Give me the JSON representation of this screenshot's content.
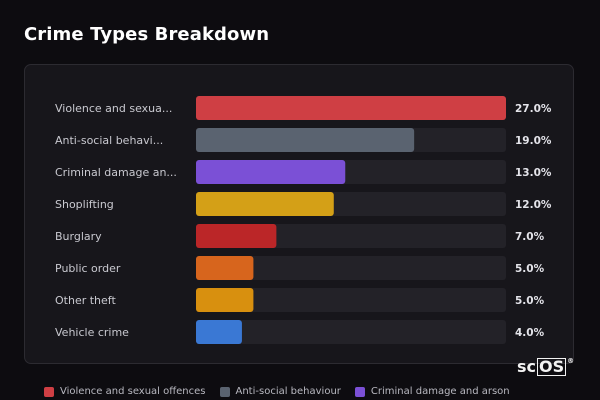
{
  "title": "Crime Types Breakdown",
  "logo": {
    "text": "sc",
    "boxed": "OS",
    "mark": "®"
  },
  "chart_data": {
    "type": "bar",
    "orientation": "horizontal",
    "max_value": 27.0,
    "categories": [
      {
        "label": "Violence and sexua...",
        "value": 27.0,
        "value_label": "27.0%",
        "color": "#cf3f44"
      },
      {
        "label": "Anti-social behavi...",
        "value": 19.0,
        "value_label": "19.0%",
        "color": "#5a6370"
      },
      {
        "label": "Criminal damage an...",
        "value": 13.0,
        "value_label": "13.0%",
        "color": "#7b50d6"
      },
      {
        "label": "Shoplifting",
        "value": 12.0,
        "value_label": "12.0%",
        "color": "#d4a017"
      },
      {
        "label": "Burglary",
        "value": 7.0,
        "value_label": "7.0%",
        "color": "#bb2628"
      },
      {
        "label": "Public order",
        "value": 5.0,
        "value_label": "5.0%",
        "color": "#d7651d"
      },
      {
        "label": "Other theft",
        "value": 5.0,
        "value_label": "5.0%",
        "color": "#d8900f"
      },
      {
        "label": "Vehicle crime",
        "value": 4.0,
        "value_label": "4.0%",
        "color": "#3a78d4"
      }
    ],
    "track_color": "#232228"
  },
  "legend": [
    {
      "label": "Violence and sexual offences",
      "color": "#cf3f44"
    },
    {
      "label": "Anti-social behaviour",
      "color": "#5a6370"
    },
    {
      "label": "Criminal damage and arson",
      "color": "#7b50d6"
    }
  ]
}
